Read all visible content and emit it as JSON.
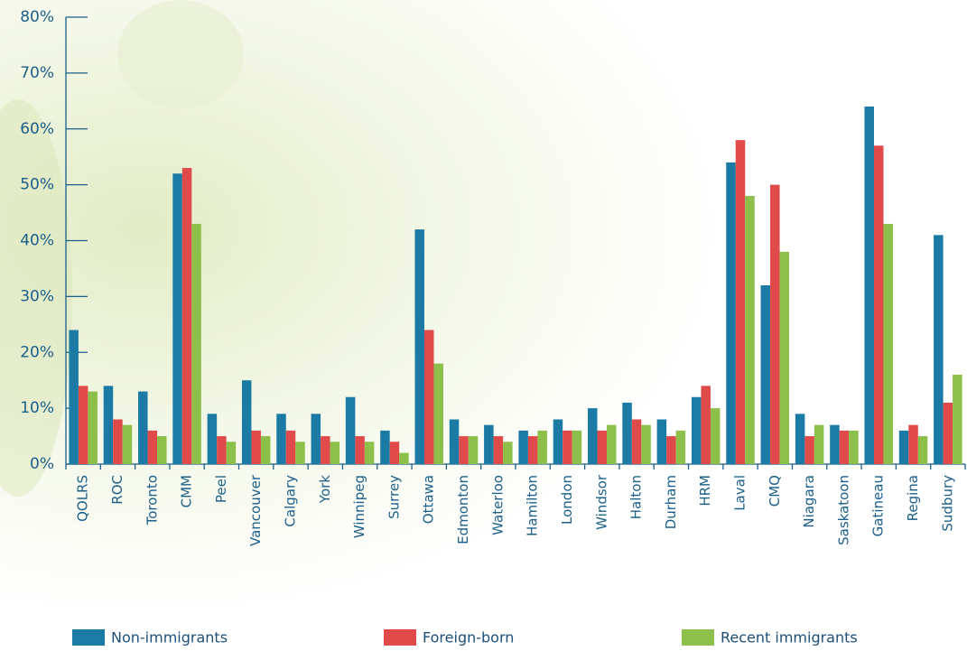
{
  "chart_data": {
    "type": "bar",
    "categories": [
      "QOLRS",
      "ROC",
      "Toronto",
      "CMM",
      "Peel",
      "Vancouver",
      "Calgary",
      "York",
      "Winnipeg",
      "Surrey",
      "Ottawa",
      "Edmonton",
      "Waterloo",
      "Hamilton",
      "London",
      "Windsor",
      "Halton",
      "Durham",
      "HRM",
      "Laval",
      "CMQ",
      "Niagara",
      "Saskatoon",
      "Gatineau",
      "Regina",
      "Sudbury"
    ],
    "series": [
      {
        "name": "Non-immigrants",
        "color": "#1b7ba5",
        "values": [
          24,
          14,
          13,
          52,
          9,
          15,
          9,
          9,
          12,
          6,
          42,
          8,
          7,
          6,
          8,
          10,
          11,
          8,
          12,
          54,
          32,
          9,
          7,
          64,
          6,
          41
        ]
      },
      {
        "name": "Foreign-born",
        "color": "#e04a4b",
        "values": [
          14,
          8,
          6,
          53,
          5,
          6,
          6,
          5,
          5,
          4,
          24,
          5,
          5,
          5,
          6,
          6,
          8,
          5,
          14,
          58,
          50,
          5,
          6,
          57,
          7,
          11
        ]
      },
      {
        "name": "Recent immigrants",
        "color": "#8cc04a",
        "values": [
          13,
          7,
          5,
          43,
          4,
          5,
          4,
          4,
          4,
          2,
          18,
          5,
          4,
          6,
          6,
          7,
          7,
          6,
          10,
          48,
          38,
          7,
          6,
          43,
          5,
          16
        ]
      }
    ],
    "ylim": [
      0,
      80
    ],
    "yticks": [
      {
        "value": 0,
        "label": "0%"
      },
      {
        "value": 10,
        "label": "10%"
      },
      {
        "value": 20,
        "label": "20%"
      },
      {
        "value": 30,
        "label": "30%"
      },
      {
        "value": 40,
        "label": "40%"
      },
      {
        "value": 50,
        "label": "50%"
      },
      {
        "value": 60,
        "label": "60%"
      },
      {
        "value": 70,
        "label": "70%"
      },
      {
        "value": 80,
        "label": "80%"
      }
    ],
    "legend": "bottom"
  }
}
